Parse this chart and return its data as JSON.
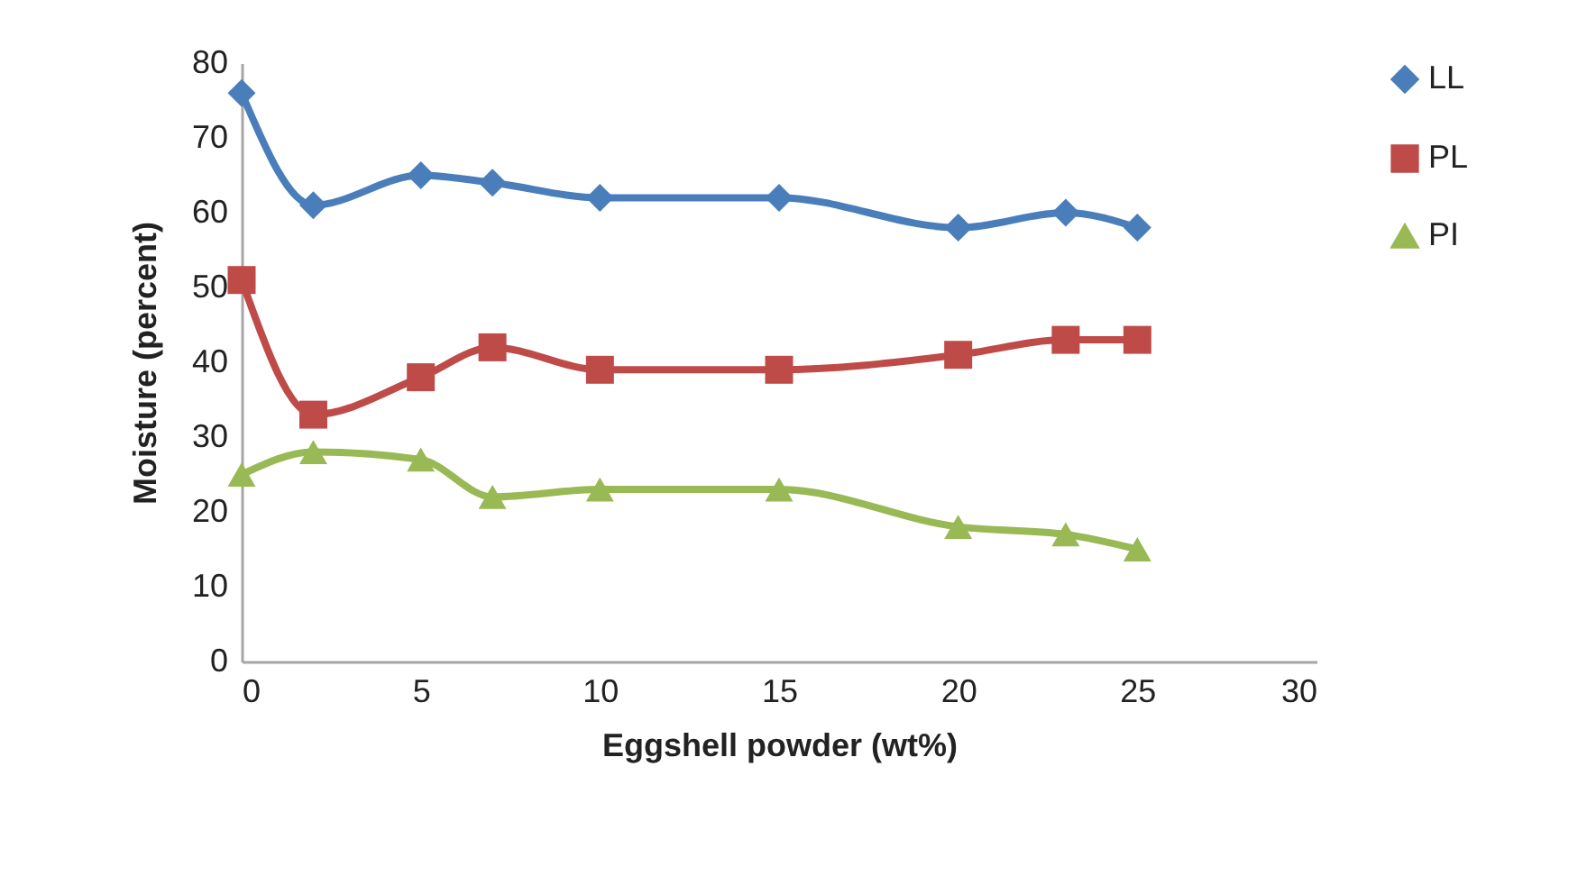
{
  "chart_data": {
    "type": "line",
    "xlabel": "Eggshell powder (wt%)",
    "ylabel": "Moisture  (percent)",
    "x": [
      0,
      2,
      5,
      7,
      10,
      15,
      20,
      23,
      25
    ],
    "series": [
      {
        "name": "LL",
        "color": "#4a7ebb",
        "marker": "diamond",
        "values": [
          76,
          61,
          65,
          64,
          62,
          62,
          58,
          60,
          58
        ]
      },
      {
        "name": "PL",
        "color": "#be4b48",
        "marker": "square",
        "values": [
          51,
          33,
          38,
          42,
          39,
          39,
          41,
          43,
          43
        ]
      },
      {
        "name": "PI",
        "color": "#98b954",
        "marker": "triangle",
        "values": [
          25,
          28,
          27,
          22,
          23,
          23,
          18,
          17,
          15
        ]
      }
    ],
    "xlim": [
      0,
      30
    ],
    "xticks": [
      0,
      5,
      10,
      15,
      20,
      25,
      30
    ],
    "ylim": [
      0,
      80
    ],
    "yticks": [
      0,
      10,
      20,
      30,
      40,
      50,
      60,
      70,
      80
    ],
    "grid": false,
    "legend": "right",
    "line_style": "solid"
  }
}
